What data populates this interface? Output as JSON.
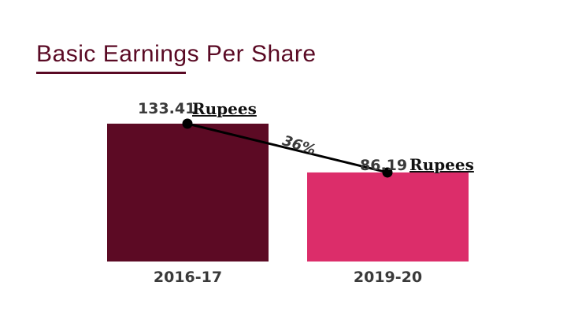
{
  "chart_data": {
    "type": "bar",
    "title": "Basic Earnings Per Share",
    "categories": [
      "2016-17",
      "2019-20"
    ],
    "values": [
      133.41,
      86.19
    ],
    "value_labels": [
      "133.41",
      "86.19"
    ],
    "unit_label": "Rupees",
    "change_label": "36%",
    "bar_colors": [
      "#5c0a24",
      "#dc2d6a"
    ],
    "ylim": [
      0,
      133.41
    ],
    "xlabel": "",
    "ylabel": "",
    "grid": false,
    "legend": "none"
  }
}
